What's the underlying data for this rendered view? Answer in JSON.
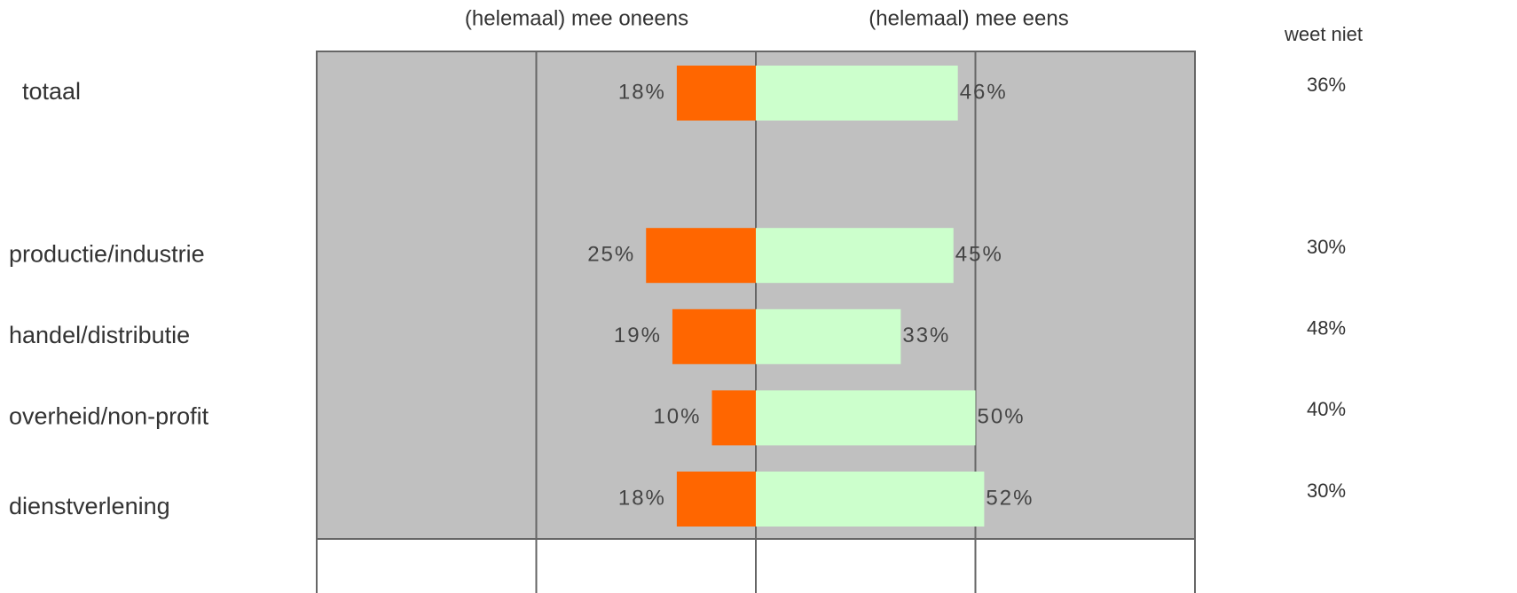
{
  "chart_data": {
    "type": "diverging-bar",
    "categories": [
      "totaal",
      null,
      "productie/industrie",
      "handel/distributie",
      "overheid/non-profit",
      "dienstverlening"
    ],
    "series": [
      {
        "name": "(helemaal) mee oneens",
        "color": "#ff6600",
        "values": [
          18,
          null,
          25,
          19,
          10,
          18
        ],
        "value_labels": [
          "18%",
          null,
          "25%",
          "19%",
          "10%",
          "18%"
        ]
      },
      {
        "name": "(helemaal) mee eens",
        "color": "#ccffcc",
        "values": [
          46,
          null,
          45,
          33,
          50,
          52
        ],
        "value_labels": [
          "46%",
          null,
          "45%",
          "33%",
          "50%",
          "52%"
        ]
      },
      {
        "name": "weet niet",
        "values": [
          36,
          null,
          30,
          48,
          40,
          30
        ],
        "value_labels": [
          "36%",
          null,
          "30%",
          "48%",
          "40%",
          "30%"
        ]
      }
    ],
    "xlim": [
      -100,
      100
    ],
    "xticks": [
      -100,
      -50,
      0,
      50,
      100
    ],
    "background": "#c0c0c0",
    "grid": true
  }
}
